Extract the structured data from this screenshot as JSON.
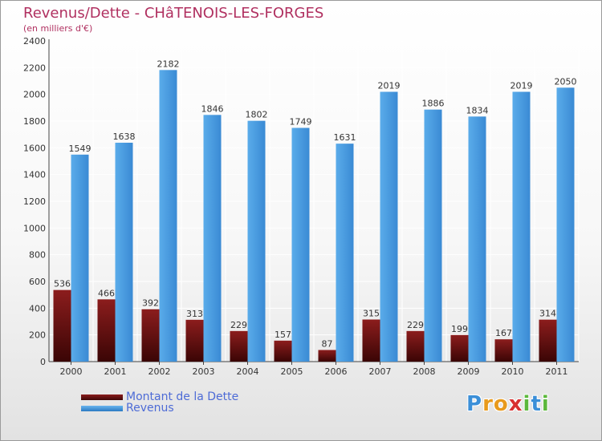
{
  "chart_data": {
    "type": "bar",
    "title": "Revenus/Dette - CHâTENOIS-LES-FORGES",
    "subtitle": "(en milliers d'€)",
    "categories": [
      "2000",
      "2001",
      "2002",
      "2003",
      "2004",
      "2005",
      "2006",
      "2007",
      "2008",
      "2009",
      "2010",
      "2011"
    ],
    "series": [
      {
        "name": "Montant de la Dette",
        "values": [
          536,
          466,
          392,
          313,
          229,
          157,
          87,
          315,
          229,
          199,
          167,
          314
        ],
        "color": "#6e0f0f"
      },
      {
        "name": "Revenus",
        "values": [
          1549,
          1638,
          2182,
          1846,
          1802,
          1749,
          1631,
          2019,
          1886,
          1834,
          2019,
          2050
        ],
        "color": "#4a9de0"
      }
    ],
    "ylim": [
      0,
      2400
    ],
    "yticks": [
      0,
      200,
      400,
      600,
      800,
      1000,
      1200,
      1400,
      1600,
      1800,
      2000,
      2200,
      2400
    ],
    "grid": true,
    "legend_position": "bottom-left"
  },
  "logo": {
    "letters": [
      {
        "char": "P",
        "color": "#3b8fd8"
      },
      {
        "char": "r",
        "color": "#e89a1c"
      },
      {
        "char": "o",
        "color": "#e89a1c"
      },
      {
        "char": "x",
        "color": "#d83030"
      },
      {
        "char": "i",
        "color": "#5cb83c"
      },
      {
        "char": "t",
        "color": "#3b8fd8"
      },
      {
        "char": "i",
        "color": "#5cb83c"
      }
    ]
  }
}
